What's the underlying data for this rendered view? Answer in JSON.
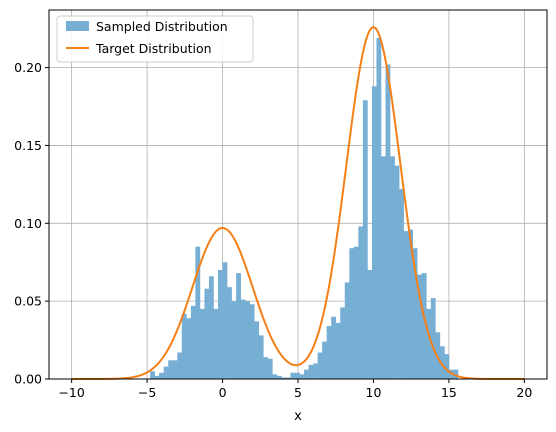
{
  "chart_data": {
    "type": "bar",
    "title": "",
    "xlabel": "x",
    "ylabel": "",
    "xlim": [
      -11.5,
      21.5
    ],
    "ylim": [
      0,
      0.237
    ],
    "xticks": [
      -10,
      -5,
      0,
      5,
      10,
      15,
      20
    ],
    "yticks": [
      0.0,
      0.05,
      0.1,
      0.15,
      0.2
    ],
    "xtick_labels": [
      "−10",
      "−5",
      "0",
      "5",
      "10",
      "15",
      "20"
    ],
    "ytick_labels": [
      "0.00",
      "0.05",
      "0.10",
      "0.15",
      "0.20"
    ],
    "grid": true,
    "legend_placement": "top-left",
    "legend": [
      "Sampled Distribution",
      "Target Distribution"
    ],
    "histogram": {
      "name": "Sampled Distribution",
      "color": "#77aed4",
      "bin_edges": [
        -4.8,
        -4.5,
        -4.2,
        -3.9,
        -3.6,
        -3.3,
        -3.0,
        -2.7,
        -2.4,
        -2.1,
        -1.8,
        -1.5,
        -1.2,
        -0.9,
        -0.6,
        -0.3,
        0.0,
        0.3,
        0.6,
        0.9,
        1.2,
        1.5,
        1.8,
        2.1,
        2.4,
        2.7,
        3.0,
        3.3,
        3.6,
        3.9,
        4.2,
        4.5,
        4.8,
        5.1,
        5.4,
        5.7,
        6.0,
        6.3,
        6.6,
        6.9,
        7.2,
        7.5,
        7.8,
        8.1,
        8.4,
        8.7,
        9.0,
        9.3,
        9.6,
        9.9,
        10.2,
        10.5,
        10.8,
        11.1,
        11.4,
        11.7,
        12.0,
        12.3,
        12.6,
        12.9,
        13.2,
        13.5,
        13.8,
        14.1,
        14.4,
        14.7,
        15.0,
        15.3,
        15.6
      ],
      "heights": [
        0.005,
        0.002,
        0.004,
        0.008,
        0.012,
        0.012,
        0.017,
        0.042,
        0.039,
        0.047,
        0.085,
        0.045,
        0.058,
        0.066,
        0.045,
        0.07,
        0.075,
        0.059,
        0.05,
        0.068,
        0.051,
        0.05,
        0.048,
        0.037,
        0.028,
        0.014,
        0.013,
        0.003,
        0.002,
        0.001,
        0.001,
        0.004,
        0.004,
        0.003,
        0.006,
        0.009,
        0.01,
        0.017,
        0.024,
        0.034,
        0.04,
        0.036,
        0.046,
        0.062,
        0.084,
        0.085,
        0.098,
        0.179,
        0.07,
        0.188,
        0.219,
        0.143,
        0.202,
        0.143,
        0.137,
        0.122,
        0.095,
        0.096,
        0.084,
        0.067,
        0.068,
        0.045,
        0.052,
        0.03,
        0.021,
        0.016,
        0.006,
        0.006
      ]
    },
    "curve": {
      "name": "Target Distribution",
      "color": "#f57f17",
      "x_range": [
        -10,
        20
      ],
      "components": [
        {
          "mean": 0,
          "sd": 2,
          "peak": 0.097
        },
        {
          "mean": 10,
          "sd": 1.8,
          "peak": 0.226
        }
      ]
    }
  }
}
